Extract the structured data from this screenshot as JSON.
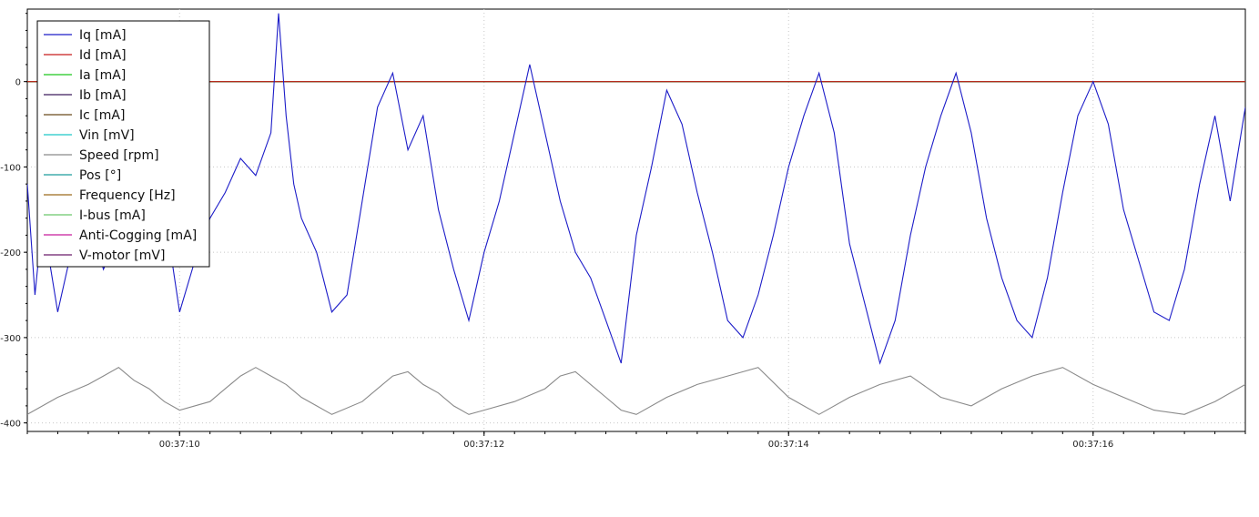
{
  "chart_data": {
    "type": "line",
    "grid": true,
    "legend_position": "top-left",
    "x_tick_labels": [
      "00:37:10",
      "00:37:12",
      "00:37:14",
      "00:37:16"
    ],
    "x_ticks": [
      10,
      12,
      14,
      16
    ],
    "xlim": [
      9.0,
      17.0
    ],
    "ylim": [
      -410,
      85
    ],
    "y_ticks": [
      0,
      -100,
      -200,
      -300,
      -400
    ],
    "y_tick_labels": [
      "0",
      "-100",
      "-200",
      "-300",
      "-400"
    ],
    "series": [
      {
        "name": "Iq [mA]",
        "color": "#1c1cc8",
        "x": [
          9.0,
          9.05,
          9.1,
          9.2,
          9.3,
          9.4,
          9.5,
          9.6,
          9.7,
          9.8,
          9.9,
          10.0,
          10.1,
          10.2,
          10.3,
          10.4,
          10.5,
          10.6,
          10.65,
          10.7,
          10.75,
          10.8,
          10.9,
          11.0,
          11.1,
          11.2,
          11.3,
          11.4,
          11.5,
          11.6,
          11.7,
          11.8,
          11.9,
          12.0,
          12.1,
          12.2,
          12.3,
          12.4,
          12.5,
          12.6,
          12.7,
          12.8,
          12.9,
          13.0,
          13.1,
          13.2,
          13.3,
          13.4,
          13.5,
          13.6,
          13.7,
          13.8,
          13.9,
          14.0,
          14.1,
          14.2,
          14.3,
          14.4,
          14.5,
          14.6,
          14.7,
          14.8,
          14.9,
          15.0,
          15.1,
          15.2,
          15.3,
          15.4,
          15.5,
          15.6,
          15.7,
          15.8,
          15.9,
          16.0,
          16.1,
          16.2,
          16.3,
          16.4,
          16.5,
          16.6,
          16.7,
          16.8,
          16.9,
          17.0
        ],
        "values": [
          -120,
          -250,
          -160,
          -270,
          -190,
          -150,
          -220,
          -180,
          -140,
          -120,
          -150,
          -270,
          -210,
          -160,
          -130,
          -90,
          -110,
          -60,
          80,
          -40,
          -120,
          -160,
          -200,
          -270,
          -250,
          -140,
          -30,
          10,
          -80,
          -40,
          -150,
          -220,
          -280,
          -200,
          -140,
          -60,
          20,
          -60,
          -140,
          -200,
          -230,
          -280,
          -330,
          -180,
          -100,
          -10,
          -50,
          -130,
          -200,
          -280,
          -300,
          -250,
          -180,
          -100,
          -40,
          10,
          -60,
          -190,
          -260,
          -330,
          -280,
          -180,
          -100,
          -40,
          10,
          -60,
          -160,
          -230,
          -280,
          -300,
          -230,
          -130,
          -40,
          0,
          -50,
          -150,
          -210,
          -270,
          -280,
          -220,
          -120,
          -40,
          -140,
          -30
        ]
      },
      {
        "name": "Id [mA]",
        "color": "#c81c1c",
        "constant": 0
      },
      {
        "name": "Ia [mA]",
        "color": "#1cc81c",
        "constant": 0
      },
      {
        "name": "Ib [mA]",
        "color": "#3c1c5c",
        "constant": 0
      },
      {
        "name": "Ic [mA]",
        "color": "#6b4a1c",
        "constant": 0
      },
      {
        "name": "Vin [mV]",
        "color": "#1cc8c8",
        "constant": 0
      },
      {
        "name": "Speed [rpm]",
        "color": "#8a8a8a",
        "x": [
          9.0,
          9.2,
          9.4,
          9.5,
          9.6,
          9.7,
          9.8,
          9.9,
          10.0,
          10.2,
          10.3,
          10.4,
          10.5,
          10.6,
          10.7,
          10.8,
          10.9,
          11.0,
          11.2,
          11.3,
          11.4,
          11.5,
          11.6,
          11.7,
          11.8,
          11.9,
          12.0,
          12.2,
          12.4,
          12.5,
          12.6,
          12.7,
          12.8,
          12.9,
          13.0,
          13.2,
          13.4,
          13.6,
          13.8,
          14.0,
          14.2,
          14.4,
          14.6,
          14.8,
          15.0,
          15.2,
          15.4,
          15.6,
          15.8,
          16.0,
          16.2,
          16.4,
          16.6,
          16.8,
          17.0
        ],
        "values": [
          -390,
          -370,
          -355,
          -345,
          -335,
          -350,
          -360,
          -375,
          -385,
          -375,
          -360,
          -345,
          -335,
          -345,
          -355,
          -370,
          -380,
          -390,
          -375,
          -360,
          -345,
          -340,
          -355,
          -365,
          -380,
          -390,
          -385,
          -375,
          -360,
          -345,
          -340,
          -355,
          -370,
          -385,
          -390,
          -370,
          -355,
          -345,
          -335,
          -370,
          -390,
          -370,
          -355,
          -345,
          -370,
          -380,
          -360,
          -345,
          -335,
          -355,
          -370,
          -385,
          -390,
          -375,
          -355
        ]
      },
      {
        "name": "Pos [°]",
        "color": "#1c9c9c",
        "constant": 0
      },
      {
        "name": "Frequency [Hz]",
        "color": "#9c6b1c",
        "constant": 0
      },
      {
        "name": "I-bus [mA]",
        "color": "#6bc86b",
        "constant": 0
      },
      {
        "name": "Anti-Cogging [mA]",
        "color": "#c81c9c",
        "constant": 0
      },
      {
        "name": "V-motor [mV]",
        "color": "#6b1c6b",
        "constant": 0
      }
    ]
  }
}
